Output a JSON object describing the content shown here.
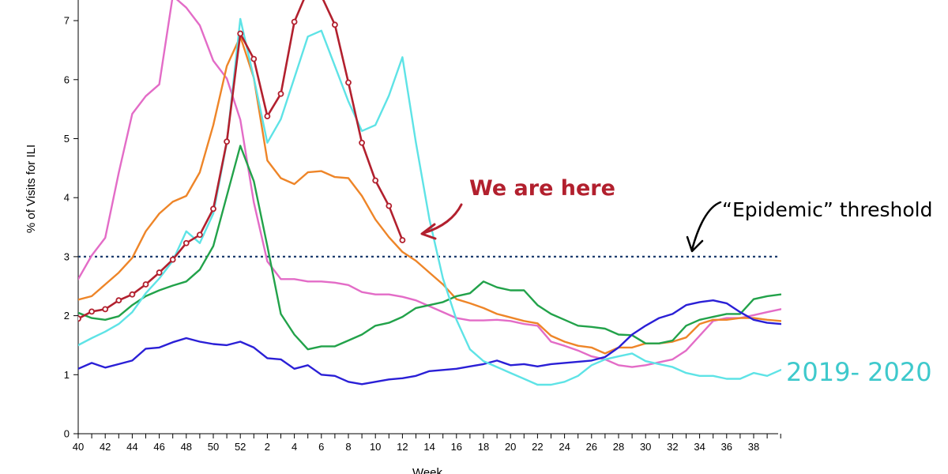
{
  "chart_data": {
    "type": "line",
    "xlabel": "Week",
    "ylabel": "% of Visits for ILI",
    "x_ticks": [
      "40",
      "42",
      "44",
      "46",
      "48",
      "50",
      "52",
      "2",
      "4",
      "6",
      "8",
      "10",
      "12",
      "14",
      "16",
      "18",
      "20",
      "22",
      "24",
      "26",
      "28",
      "30",
      "32",
      "34",
      "36",
      "38"
    ],
    "y_ticks": [
      0,
      1,
      2,
      3,
      4,
      5,
      6,
      7
    ],
    "ylim": [
      0,
      7.3
    ],
    "x_range_weeks": [
      0,
      52
    ],
    "threshold": {
      "value": 3.0,
      "label": "“Epidemic” threshold",
      "color": "#1d3c6e"
    },
    "series": [
      {
        "color": "#e36cc7",
        "values": [
          2.62,
          3.02,
          3.32,
          4.42,
          5.42,
          5.72,
          5.92,
          7.42,
          7.22,
          6.92,
          6.32,
          6.02,
          5.32,
          3.92,
          2.92,
          2.62,
          2.62,
          2.58,
          2.58,
          2.56,
          2.52,
          2.4,
          2.36,
          2.36,
          2.32,
          2.26,
          2.16,
          2.06,
          1.96,
          1.92,
          1.92,
          1.93,
          1.91,
          1.86,
          1.83,
          1.56,
          1.49,
          1.41,
          1.31,
          1.26,
          1.16,
          1.13,
          1.16,
          1.21,
          1.26,
          1.41,
          1.66,
          1.91,
          1.96,
          1.96,
          2.01,
          2.06,
          2.11
        ]
      },
      {
        "color": "#ee8528",
        "values": [
          2.27,
          2.33,
          2.53,
          2.73,
          2.98,
          3.43,
          3.73,
          3.93,
          4.03,
          4.43,
          5.23,
          6.23,
          6.73,
          6.03,
          4.63,
          4.33,
          4.23,
          4.43,
          4.45,
          4.35,
          4.33,
          4.03,
          3.63,
          3.33,
          3.08,
          2.93,
          2.73,
          2.53,
          2.28,
          2.21,
          2.13,
          2.03,
          1.97,
          1.91,
          1.87,
          1.66,
          1.56,
          1.49,
          1.46,
          1.36,
          1.46,
          1.46,
          1.53,
          1.53,
          1.56,
          1.63,
          1.86,
          1.93,
          1.93,
          1.96,
          1.96,
          1.93,
          1.91
        ]
      },
      {
        "color": "#22a24a",
        "values": [
          2.05,
          1.96,
          1.93,
          1.99,
          2.18,
          2.33,
          2.43,
          2.51,
          2.58,
          2.78,
          3.18,
          4.03,
          4.88,
          4.28,
          3.18,
          2.03,
          1.68,
          1.43,
          1.48,
          1.48,
          1.58,
          1.68,
          1.83,
          1.88,
          1.98,
          2.13,
          2.18,
          2.23,
          2.33,
          2.38,
          2.58,
          2.48,
          2.43,
          2.43,
          2.18,
          2.03,
          1.93,
          1.83,
          1.81,
          1.78,
          1.68,
          1.67,
          1.53,
          1.53,
          1.58,
          1.83,
          1.93,
          1.98,
          2.03,
          2.03,
          2.28,
          2.33,
          2.36
        ]
      },
      {
        "color": "#2a1fd6",
        "values": [
          1.1,
          1.2,
          1.12,
          1.18,
          1.24,
          1.44,
          1.46,
          1.55,
          1.62,
          1.56,
          1.52,
          1.5,
          1.56,
          1.46,
          1.28,
          1.26,
          1.1,
          1.16,
          1.0,
          0.98,
          0.88,
          0.84,
          0.88,
          0.92,
          0.94,
          0.98,
          1.06,
          1.08,
          1.1,
          1.14,
          1.18,
          1.24,
          1.16,
          1.18,
          1.14,
          1.18,
          1.2,
          1.22,
          1.24,
          1.3,
          1.46,
          1.68,
          1.83,
          1.96,
          2.03,
          2.18,
          2.23,
          2.26,
          2.21,
          2.06,
          1.93,
          1.88,
          1.86
        ]
      },
      {
        "name": "2019- 2020",
        "color": "#5ee3e6",
        "values": [
          1.5,
          1.62,
          1.73,
          1.86,
          2.06,
          2.38,
          2.63,
          2.93,
          3.43,
          3.23,
          3.73,
          4.93,
          7.03,
          6.03,
          4.93,
          5.33,
          6.03,
          6.73,
          6.83,
          6.23,
          5.63,
          5.13,
          5.23,
          5.73,
          6.38,
          4.93,
          3.63,
          2.63,
          1.93,
          1.43,
          1.23,
          1.13,
          1.03,
          0.93,
          0.83,
          0.83,
          0.88,
          0.98,
          1.16,
          1.26,
          1.31,
          1.36,
          1.23,
          1.18,
          1.13,
          1.03,
          0.98,
          0.98,
          0.93,
          0.93,
          1.03,
          0.98,
          1.08
        ]
      },
      {
        "color": "#b2202e",
        "markers": true,
        "values": [
          1.95,
          2.07,
          2.11,
          2.26,
          2.36,
          2.53,
          2.73,
          2.95,
          3.23,
          3.37,
          3.81,
          4.95,
          6.78,
          6.35,
          5.38,
          5.76,
          6.98,
          7.52,
          7.42,
          6.93,
          5.95,
          4.93,
          4.29,
          3.86,
          3.28
        ]
      }
    ],
    "annotations": {
      "here_label": "We are here",
      "here_color": "#b2202e",
      "series_label_color": "#3ec9cc"
    }
  }
}
